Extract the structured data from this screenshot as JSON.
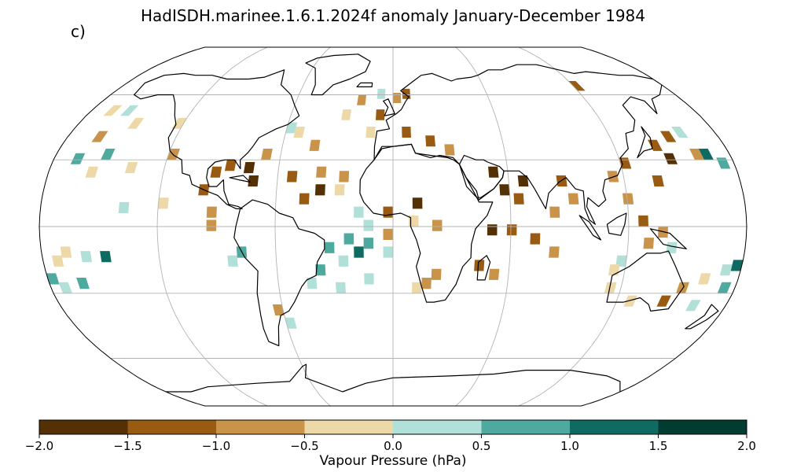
{
  "title": "HadISDH.marinee.1.6.1.2024f anomaly January-December 1984",
  "panel_label": "c)",
  "colorbar": {
    "label": "Vapour Pressure (hPa)",
    "ticks": [
      "−2.0",
      "−1.5",
      "−1.0",
      "−0.5",
      "0.0",
      "0.5",
      "1.0",
      "1.5",
      "2.0"
    ],
    "range": [
      -2.0,
      2.0
    ],
    "bins": [
      {
        "min": -2.0,
        "max": -1.5,
        "color": "#543005"
      },
      {
        "min": -1.5,
        "max": -1.0,
        "color": "#995a12"
      },
      {
        "min": -1.0,
        "max": -0.5,
        "color": "#c9934a"
      },
      {
        "min": -0.5,
        "max": 0.0,
        "color": "#edd9a8"
      },
      {
        "min": 0.0,
        "max": 0.5,
        "color": "#b1e0d9"
      },
      {
        "min": 0.5,
        "max": 1.0,
        "color": "#4ea99e"
      },
      {
        "min": 1.0,
        "max": 1.5,
        "color": "#0f6b61"
      },
      {
        "min": 1.5,
        "max": 2.0,
        "color": "#003c30"
      }
    ]
  },
  "map": {
    "projection": "Robinson",
    "gridlines": true,
    "cells": [
      [
        -1.2,
        62,
        120
      ],
      [
        -0.3,
        50,
        -170
      ],
      [
        0.3,
        50,
        -160
      ],
      [
        -0.3,
        44,
        -150
      ],
      [
        -0.8,
        38,
        -165
      ],
      [
        0.7,
        28,
        -170
      ],
      [
        0.7,
        30,
        -155
      ],
      [
        -0.3,
        22,
        -160
      ],
      [
        -0.3,
        24,
        -140
      ],
      [
        -0.6,
        30,
        -120
      ],
      [
        -0.3,
        44,
        -125
      ],
      [
        -1.2,
        22,
        -95
      ],
      [
        -1.2,
        25,
        -88
      ],
      [
        -1.7,
        24,
        -78
      ],
      [
        -1.7,
        18,
        -75
      ],
      [
        -0.8,
        30,
        -70
      ],
      [
        -0.3,
        40,
        -55
      ],
      [
        0.3,
        42,
        -60
      ],
      [
        -0.8,
        34,
        -45
      ],
      [
        -1.2,
        20,
        -55
      ],
      [
        -0.6,
        22,
        -40
      ],
      [
        -1.7,
        14,
        -40
      ],
      [
        -1.2,
        10,
        -48
      ],
      [
        -0.3,
        14,
        -30
      ],
      [
        -0.8,
        20,
        -28
      ],
      [
        -0.3,
        48,
        -30
      ],
      [
        -0.8,
        55,
        -22
      ],
      [
        0.3,
        58,
        -10
      ],
      [
        -1.2,
        48,
        -10
      ],
      [
        -0.3,
        40,
        -15
      ],
      [
        -1.2,
        40,
        5
      ],
      [
        -1.2,
        36,
        18
      ],
      [
        -0.8,
        32,
        28
      ],
      [
        -0.6,
        56,
        0
      ],
      [
        -1.2,
        58,
        6
      ],
      [
        -1.7,
        22,
        50
      ],
      [
        -1.7,
        14,
        55
      ],
      [
        -1.7,
        18,
        65
      ],
      [
        -1.2,
        10,
        62
      ],
      [
        -1.2,
        18,
        85
      ],
      [
        -0.6,
        10,
        90
      ],
      [
        -0.8,
        4,
        80
      ],
      [
        -1.2,
        -4,
        58
      ],
      [
        -1.2,
        -8,
        70
      ],
      [
        -0.8,
        -14,
        80
      ],
      [
        -1.7,
        -4,
        48
      ],
      [
        -1.2,
        -20,
        42
      ],
      [
        -0.6,
        -24,
        50
      ],
      [
        -0.8,
        20,
        112
      ],
      [
        -1.2,
        26,
        120
      ],
      [
        -0.8,
        10,
        118
      ],
      [
        -1.2,
        0,
        125
      ],
      [
        -0.6,
        -5,
        135
      ],
      [
        -0.8,
        -10,
        128
      ],
      [
        -1.2,
        18,
        135
      ],
      [
        -1.7,
        28,
        145
      ],
      [
        -1.2,
        34,
        140
      ],
      [
        -1.2,
        38,
        150
      ],
      [
        -0.8,
        30,
        160
      ],
      [
        0.7,
        26,
        172
      ],
      [
        1.2,
        30,
        165
      ],
      [
        0.3,
        40,
        158
      ],
      [
        0.3,
        -18,
        115
      ],
      [
        -0.3,
        -22,
        112
      ],
      [
        -0.3,
        -30,
        112
      ],
      [
        -0.3,
        -36,
        125
      ],
      [
        -0.8,
        -30,
        150
      ],
      [
        -0.3,
        -26,
        160
      ],
      [
        0.3,
        -22,
        170
      ],
      [
        1.2,
        -20,
        175
      ],
      [
        0.7,
        -30,
        172
      ],
      [
        0.3,
        -38,
        160
      ],
      [
        -1.2,
        -36,
        143
      ],
      [
        0.3,
        -12,
        140
      ],
      [
        0.3,
        -14,
        -5
      ],
      [
        0.7,
        -10,
        -15
      ],
      [
        1.2,
        -14,
        -20
      ],
      [
        0.7,
        -8,
        -25
      ],
      [
        0.3,
        -18,
        -28
      ],
      [
        0.3,
        -2,
        -15
      ],
      [
        0.7,
        -12,
        -35
      ],
      [
        0.3,
        -30,
        -30
      ],
      [
        0.3,
        -26,
        -15
      ],
      [
        0.7,
        -22,
        -40
      ],
      [
        0.3,
        -28,
        -45
      ],
      [
        -0.8,
        -28,
        15
      ],
      [
        -0.6,
        -24,
        20
      ],
      [
        -0.3,
        -30,
        10
      ],
      [
        0.3,
        -18,
        -85
      ],
      [
        -0.3,
        -14,
        -170
      ],
      [
        0.3,
        -16,
        -160
      ],
      [
        1.2,
        -16,
        -150
      ],
      [
        0.7,
        -26,
        -180
      ],
      [
        0.3,
        -30,
        -175
      ],
      [
        -0.6,
        -40,
        -65
      ],
      [
        0.3,
        -46,
        -60
      ],
      [
        0.7,
        -14,
        -80
      ],
      [
        0.7,
        -28,
        -165
      ],
      [
        -0.3,
        -18,
        -175
      ],
      [
        0.3,
        6,
        -140
      ],
      [
        -0.8,
        -2,
        -95
      ],
      [
        -1.2,
        14,
        -100
      ],
      [
        -0.8,
        4,
        -95
      ],
      [
        -0.3,
        8,
        -120
      ],
      [
        -0.6,
        -2,
        20
      ],
      [
        -1.2,
        4,
        -5
      ],
      [
        0.3,
        4,
        -20
      ],
      [
        -0.3,
        0,
        8
      ],
      [
        -0.8,
        -6,
        -5
      ],
      [
        -1.7,
        8,
        10
      ]
    ]
  }
}
